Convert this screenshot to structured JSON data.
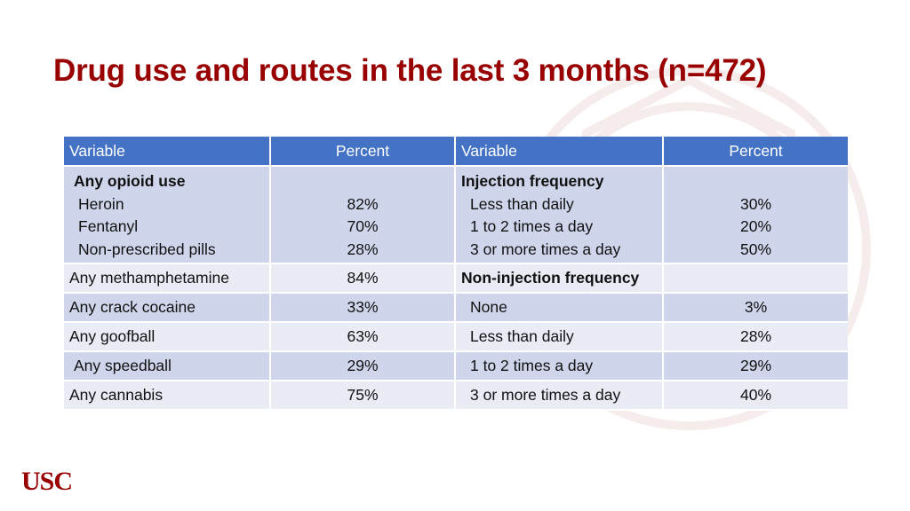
{
  "slide": {
    "title": "Drug use and routes in the last 3 months (n=472)",
    "logo_text": "USC",
    "accent_color": "#990000",
    "header_color": "#4472c4"
  },
  "table": {
    "headers": [
      "Variable",
      "Percent",
      "Variable",
      "Percent"
    ],
    "opioid_block": {
      "heading": "Any opioid use",
      "items": [
        {
          "label": "Heroin",
          "value": "82%"
        },
        {
          "label": "Fentanyl",
          "value": "70%"
        },
        {
          "label": "Non-prescribed pills",
          "value": "28%"
        }
      ]
    },
    "injection_block": {
      "heading": "Injection frequency",
      "items": [
        {
          "label": "Less than daily",
          "value": "30%"
        },
        {
          "label": "1 to 2 times a day",
          "value": "20%"
        },
        {
          "label": "3 or more times a day",
          "value": "50%"
        }
      ]
    },
    "rows": [
      {
        "left_label": "Any methamphetamine",
        "left_value": "84%",
        "right_label": "Non-injection frequency",
        "right_value": ""
      },
      {
        "left_label": "Any crack cocaine",
        "left_value": "33%",
        "right_label": "None",
        "right_value": "3%"
      },
      {
        "left_label": "Any goofball",
        "left_value": "63%",
        "right_label": "Less than daily",
        "right_value": "28%"
      },
      {
        "left_label": "Any speedball",
        "left_value": "29%",
        "right_label": "1 to 2 times a day",
        "right_value": "29%"
      },
      {
        "left_label": "Any cannabis",
        "left_value": "75%",
        "right_label": "3 or more times a day",
        "right_value": "40%"
      }
    ]
  }
}
